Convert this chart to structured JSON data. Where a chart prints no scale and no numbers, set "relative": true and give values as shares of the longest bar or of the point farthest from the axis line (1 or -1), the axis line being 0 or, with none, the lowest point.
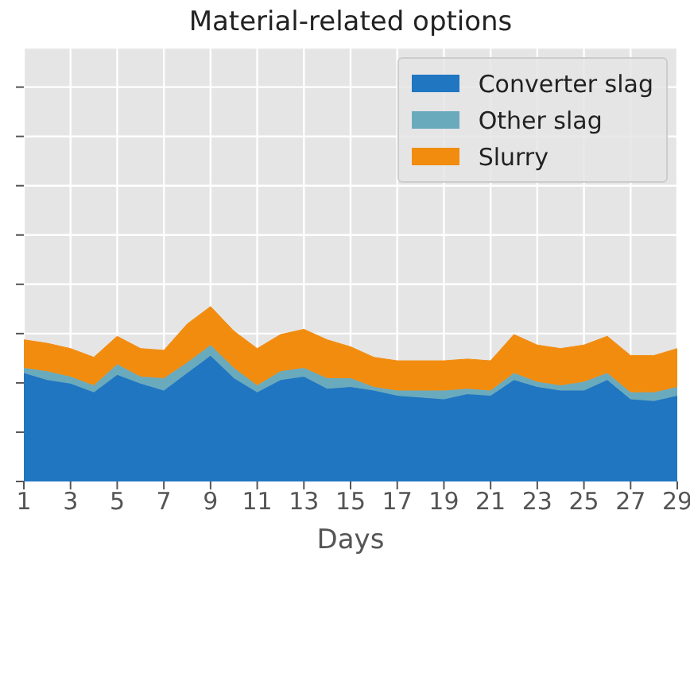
{
  "chart_data": {
    "type": "area",
    "title": "Material-related options",
    "xlabel": "Days",
    "stacked": true,
    "relative": true,
    "grid": true,
    "legend": "top right",
    "x": [
      1,
      2,
      3,
      4,
      5,
      6,
      7,
      8,
      9,
      10,
      11,
      12,
      13,
      14,
      15,
      16,
      17,
      18,
      19,
      20,
      21,
      22,
      23,
      24,
      25,
      26,
      27,
      28,
      29
    ],
    "xlim": [
      1,
      29
    ],
    "xticks": [
      1,
      3,
      5,
      7,
      9,
      11,
      13,
      15,
      17,
      19,
      21,
      23,
      25,
      27,
      29
    ],
    "series": [
      {
        "name": "Converter slag",
        "color": "#2176c1",
        "values": [
          0.62,
          0.58,
          0.56,
          0.51,
          0.61,
          0.56,
          0.52,
          0.62,
          0.72,
          0.59,
          0.51,
          0.58,
          0.6,
          0.53,
          0.54,
          0.52,
          0.49,
          0.48,
          0.47,
          0.5,
          0.49,
          0.58,
          0.54,
          0.52,
          0.52,
          0.58,
          0.47,
          0.46,
          0.49
        ]
      },
      {
        "name": "Other slag",
        "color": "#6aaabd",
        "values": [
          0.03,
          0.05,
          0.04,
          0.04,
          0.06,
          0.04,
          0.07,
          0.06,
          0.06,
          0.06,
          0.04,
          0.05,
          0.05,
          0.06,
          0.05,
          0.02,
          0.03,
          0.04,
          0.05,
          0.03,
          0.03,
          0.04,
          0.03,
          0.03,
          0.05,
          0.04,
          0.04,
          0.05,
          0.05
        ]
      },
      {
        "name": "Slurry",
        "color": "#f28c0f",
        "values": [
          0.16,
          0.16,
          0.16,
          0.16,
          0.16,
          0.16,
          0.16,
          0.22,
          0.22,
          0.21,
          0.21,
          0.21,
          0.22,
          0.22,
          0.18,
          0.17,
          0.17,
          0.17,
          0.17,
          0.17,
          0.17,
          0.22,
          0.21,
          0.21,
          0.21,
          0.21,
          0.21,
          0.21,
          0.22
        ]
      }
    ]
  }
}
